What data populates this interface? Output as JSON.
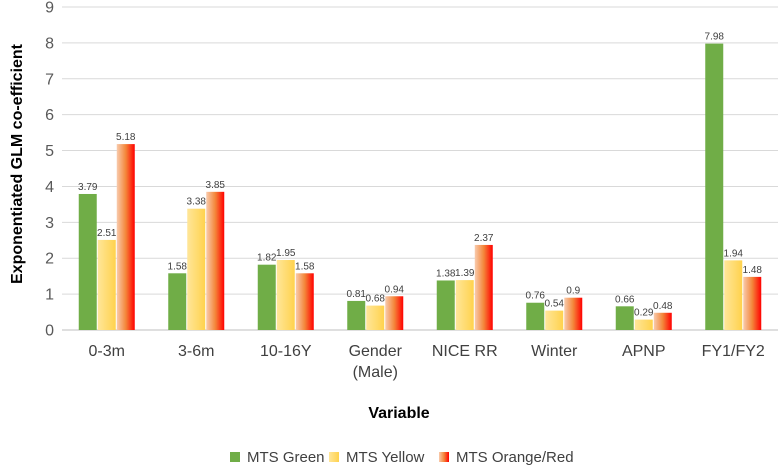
{
  "chart_data": {
    "type": "bar",
    "title": "",
    "xlabel": "Variable",
    "ylabel": "Exponentiated GLM co-efficient",
    "ylim": [
      0,
      9
    ],
    "yticks": [
      0,
      1,
      2,
      3,
      4,
      5,
      6,
      7,
      8,
      9
    ],
    "grid": "horizontal",
    "legend_position": "bottom",
    "categories": [
      [
        "0-3m"
      ],
      [
        "3-6m"
      ],
      [
        "10-16Y"
      ],
      [
        "Gender",
        "(Male)"
      ],
      [
        "NICE RR"
      ],
      [
        "Winter"
      ],
      [
        "APNP"
      ],
      [
        "FY1/FY2"
      ]
    ],
    "series": [
      {
        "name": "MTS Green",
        "color": "#70ad47",
        "values": [
          3.79,
          1.58,
          1.82,
          0.81,
          1.38,
          0.76,
          0.66,
          7.98
        ],
        "labels": [
          "3.79",
          "1.58",
          "1.82",
          "0.81",
          "1.38",
          "0.76",
          "0.66",
          "7.98"
        ]
      },
      {
        "name": "MTS Yellow",
        "color": "#ffd966",
        "values": [
          2.51,
          3.38,
          1.95,
          0.68,
          1.39,
          0.54,
          0.29,
          1.94
        ],
        "labels": [
          "2.51",
          "3.38",
          "1.95",
          "0.68",
          "1.39",
          "0.54",
          "0.29",
          "1.94"
        ]
      },
      {
        "name": "MTS Orange/Red",
        "color": "#ff3300",
        "values": [
          5.18,
          3.85,
          1.58,
          0.94,
          2.37,
          0.9,
          0.48,
          1.48
        ],
        "labels": [
          "5.18",
          "3.85",
          "1.58",
          "0.94",
          "2.37",
          "0.9",
          "0.48",
          "1.48"
        ]
      }
    ]
  }
}
